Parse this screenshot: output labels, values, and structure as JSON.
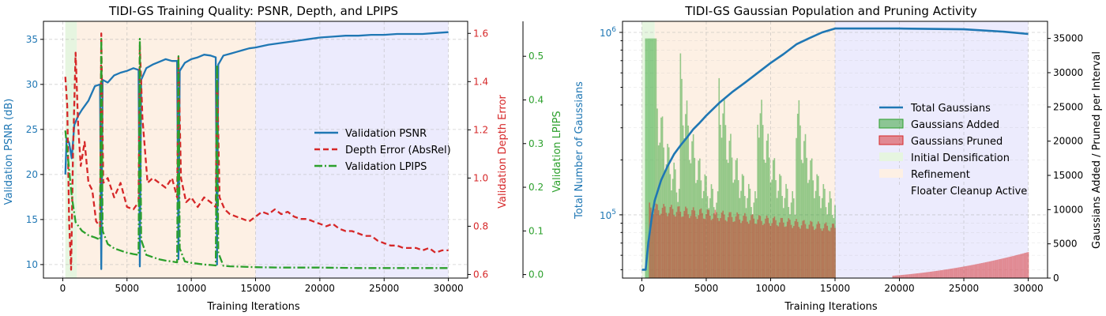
{
  "chart_data": [
    {
      "type": "line",
      "title": "TIDI-GS Training Quality: PSNR, Depth, and LPIPS",
      "xlabel": "Training Iterations",
      "xlim": [
        -1500,
        31500
      ],
      "xticks": [
        0,
        5000,
        10000,
        15000,
        20000,
        25000,
        30000
      ],
      "ylabel": "Validation PSNR (dB)",
      "ylim": [
        8.5,
        37
      ],
      "yticks": [
        10,
        15,
        20,
        25,
        30,
        35
      ],
      "y2label": "Validation Depth Error",
      "y2lim": [
        0.585,
        1.65
      ],
      "y2ticks": [
        "0.6",
        "0.8",
        "1.0",
        "1.2",
        "1.4",
        "1.6"
      ],
      "y3label": "Validation LPIPS",
      "y3lim": [
        -0.008,
        0.58
      ],
      "y3ticks": [
        "0.0",
        "0.1",
        "0.2",
        "0.3",
        "0.4",
        "0.5"
      ],
      "phases": [
        {
          "name": "Initial Densification",
          "start": 200,
          "end": 1100,
          "color": "#e6f5e0"
        },
        {
          "name": "Refinement",
          "start": 1100,
          "end": 15000,
          "color": "#fdf0e4"
        },
        {
          "name": "Floater Cleanup Active",
          "start": 15000,
          "end": 30000,
          "color": "#ecebfd"
        }
      ],
      "series": [
        {
          "name": "Validation PSNR",
          "axis": "y",
          "color": "#1f77b4",
          "dash": "",
          "points": [
            [
              200,
              20
            ],
            [
              300,
              24
            ],
            [
              500,
              23.5
            ],
            [
              700,
              21.8
            ],
            [
              900,
              25.5
            ],
            [
              1200,
              26.5
            ],
            [
              1500,
              27.2
            ],
            [
              2000,
              28.2
            ],
            [
              2500,
              29.8
            ],
            [
              2900,
              30
            ],
            [
              3000,
              9.5
            ],
            [
              3100,
              30.5
            ],
            [
              3500,
              30.2
            ],
            [
              4000,
              31
            ],
            [
              4500,
              31.3
            ],
            [
              5000,
              31.5
            ],
            [
              5500,
              31.8
            ],
            [
              5900,
              31.6
            ],
            [
              6000,
              9.8
            ],
            [
              6100,
              30.5
            ],
            [
              6500,
              31.8
            ],
            [
              7000,
              32.2
            ],
            [
              7500,
              32.5
            ],
            [
              8000,
              32.8
            ],
            [
              8500,
              32.6
            ],
            [
              8900,
              32.6
            ],
            [
              9000,
              10.6
            ],
            [
              9100,
              31.5
            ],
            [
              9500,
              32.4
            ],
            [
              10000,
              32.8
            ],
            [
              10500,
              33
            ],
            [
              11000,
              33.3
            ],
            [
              11500,
              33.2
            ],
            [
              11900,
              33
            ],
            [
              12000,
              10
            ],
            [
              12100,
              32.2
            ],
            [
              12500,
              33.2
            ],
            [
              13000,
              33.4
            ],
            [
              13500,
              33.6
            ],
            [
              14000,
              33.8
            ],
            [
              14500,
              34
            ],
            [
              15000,
              34.1
            ],
            [
              16000,
              34.4
            ],
            [
              17000,
              34.6
            ],
            [
              18000,
              34.8
            ],
            [
              19000,
              35
            ],
            [
              20000,
              35.2
            ],
            [
              21000,
              35.3
            ],
            [
              22000,
              35.4
            ],
            [
              23000,
              35.4
            ],
            [
              24000,
              35.5
            ],
            [
              25000,
              35.5
            ],
            [
              26000,
              35.6
            ],
            [
              27000,
              35.6
            ],
            [
              28000,
              35.6
            ],
            [
              29000,
              35.7
            ],
            [
              30000,
              35.8
            ]
          ]
        },
        {
          "name": "Depth Error (AbsRel)",
          "axis": "y2",
          "color": "#d62728",
          "dash": "7,4",
          "points": [
            [
              200,
              1.42
            ],
            [
              350,
              1.3
            ],
            [
              500,
              0.82
            ],
            [
              650,
              0.62
            ],
            [
              800,
              1.1
            ],
            [
              1000,
              1.52
            ],
            [
              1200,
              1.22
            ],
            [
              1400,
              1.05
            ],
            [
              1700,
              1.15
            ],
            [
              2000,
              0.98
            ],
            [
              2300,
              0.95
            ],
            [
              2600,
              0.82
            ],
            [
              2900,
              0.8
            ],
            [
              3000,
              1.6
            ],
            [
              3150,
              0.98
            ],
            [
              3500,
              1.0
            ],
            [
              4000,
              0.92
            ],
            [
              4500,
              0.98
            ],
            [
              5000,
              0.88
            ],
            [
              5500,
              0.87
            ],
            [
              5900,
              0.9
            ],
            [
              6000,
              1.55
            ],
            [
              6200,
              1.25
            ],
            [
              6600,
              0.98
            ],
            [
              7000,
              1.0
            ],
            [
              7500,
              0.98
            ],
            [
              8000,
              0.96
            ],
            [
              8500,
              1.0
            ],
            [
              8900,
              0.92
            ],
            [
              9000,
              1.5
            ],
            [
              9200,
              1.0
            ],
            [
              9600,
              0.9
            ],
            [
              10000,
              0.92
            ],
            [
              10500,
              0.88
            ],
            [
              11000,
              0.92
            ],
            [
              11500,
              0.9
            ],
            [
              11900,
              0.88
            ],
            [
              12000,
              1.46
            ],
            [
              12200,
              0.92
            ],
            [
              12600,
              0.87
            ],
            [
              13000,
              0.85
            ],
            [
              13500,
              0.84
            ],
            [
              14000,
              0.83
            ],
            [
              14500,
              0.82
            ],
            [
              15000,
              0.84
            ],
            [
              15500,
              0.86
            ],
            [
              16000,
              0.85
            ],
            [
              16500,
              0.87
            ],
            [
              17000,
              0.85
            ],
            [
              17500,
              0.86
            ],
            [
              18000,
              0.84
            ],
            [
              18500,
              0.83
            ],
            [
              19000,
              0.83
            ],
            [
              19500,
              0.82
            ],
            [
              20000,
              0.81
            ],
            [
              20500,
              0.8
            ],
            [
              21000,
              0.81
            ],
            [
              21500,
              0.79
            ],
            [
              22000,
              0.78
            ],
            [
              22500,
              0.78
            ],
            [
              23000,
              0.77
            ],
            [
              23500,
              0.76
            ],
            [
              24000,
              0.76
            ],
            [
              24500,
              0.74
            ],
            [
              25000,
              0.73
            ],
            [
              25500,
              0.72
            ],
            [
              26000,
              0.72
            ],
            [
              26500,
              0.71
            ],
            [
              27000,
              0.71
            ],
            [
              27500,
              0.71
            ],
            [
              28000,
              0.7
            ],
            [
              28500,
              0.71
            ],
            [
              29000,
              0.69
            ],
            [
              29500,
              0.7
            ],
            [
              30000,
              0.7
            ]
          ]
        },
        {
          "name": "Validation LPIPS",
          "axis": "y3",
          "color": "#2ca02c",
          "dash": "10,3,2,3",
          "points": [
            [
              200,
              0.33
            ],
            [
              300,
              0.3
            ],
            [
              500,
              0.24
            ],
            [
              700,
              0.18
            ],
            [
              1000,
              0.12
            ],
            [
              1500,
              0.1
            ],
            [
              2000,
              0.09
            ],
            [
              2500,
              0.085
            ],
            [
              2900,
              0.08
            ],
            [
              3000,
              0.54
            ],
            [
              3100,
              0.1
            ],
            [
              3500,
              0.07
            ],
            [
              4000,
              0.06
            ],
            [
              4500,
              0.055
            ],
            [
              5000,
              0.05
            ],
            [
              5500,
              0.047
            ],
            [
              5900,
              0.045
            ],
            [
              6000,
              0.54
            ],
            [
              6100,
              0.08
            ],
            [
              6500,
              0.045
            ],
            [
              7000,
              0.04
            ],
            [
              7500,
              0.035
            ],
            [
              8000,
              0.032
            ],
            [
              8500,
              0.03
            ],
            [
              8900,
              0.028
            ],
            [
              9000,
              0.5
            ],
            [
              9100,
              0.06
            ],
            [
              9500,
              0.03
            ],
            [
              10000,
              0.027
            ],
            [
              10500,
              0.025
            ],
            [
              11000,
              0.023
            ],
            [
              11500,
              0.022
            ],
            [
              11900,
              0.021
            ],
            [
              12000,
              0.48
            ],
            [
              12100,
              0.05
            ],
            [
              12500,
              0.02
            ],
            [
              13000,
              0.019
            ],
            [
              14000,
              0.018
            ],
            [
              15000,
              0.017
            ],
            [
              17000,
              0.016
            ],
            [
              20000,
              0.016
            ],
            [
              23000,
              0.015
            ],
            [
              26000,
              0.015
            ],
            [
              30000,
              0.015
            ]
          ]
        }
      ],
      "legend": {
        "position": "center-right",
        "entries": [
          "Validation PSNR",
          "Depth Error (AbsRel)",
          "Validation LPIPS"
        ]
      }
    },
    {
      "type": "line",
      "title": "TIDI-GS Gaussian Population and Pruning Activity",
      "xlabel": "Training Iterations",
      "xlim": [
        -1500,
        31500
      ],
      "xticks": [
        0,
        5000,
        10000,
        15000,
        20000,
        25000,
        30000
      ],
      "ylabel": "Total Number of Gaussians",
      "yscale": "log",
      "ylim": [
        45000,
        1150000
      ],
      "yticks_major": [
        {
          "value": 100000,
          "base": "10",
          "exp": "5"
        },
        {
          "value": 1000000,
          "base": "10",
          "exp": "6"
        }
      ],
      "y2label": "Gaussians Added / Pruned per Interval",
      "y2lim": [
        0,
        37500
      ],
      "y2ticks": [
        0,
        5000,
        10000,
        15000,
        20000,
        25000,
        30000,
        35000
      ],
      "phases": [
        {
          "name": "Initial Densification",
          "start": 0,
          "end": 1000,
          "color": "#e6f5e0"
        },
        {
          "name": "Refinement",
          "start": 1000,
          "end": 15000,
          "color": "#fdf0e4"
        },
        {
          "name": "Floater Cleanup Active",
          "start": 15000,
          "end": 30000,
          "color": "#ecebfd"
        }
      ],
      "series": [
        {
          "name": "Total Gaussians",
          "axis": "y",
          "color": "#1f77b4",
          "points": [
            [
              0,
              50000
            ],
            [
              300,
              50000
            ],
            [
              500,
              70000
            ],
            [
              800,
              100000
            ],
            [
              1000,
              120000
            ],
            [
              1500,
              155000
            ],
            [
              2000,
              185000
            ],
            [
              2500,
              215000
            ],
            [
              3000,
              240000
            ],
            [
              3500,
              265000
            ],
            [
              4000,
              295000
            ],
            [
              4500,
              320000
            ],
            [
              5000,
              350000
            ],
            [
              6000,
              410000
            ],
            [
              7000,
              470000
            ],
            [
              8000,
              530000
            ],
            [
              9000,
              600000
            ],
            [
              10000,
              680000
            ],
            [
              11000,
              760000
            ],
            [
              12000,
              860000
            ],
            [
              13000,
              930000
            ],
            [
              14000,
              1000000
            ],
            [
              15000,
              1050000
            ],
            [
              20000,
              1050000
            ],
            [
              25000,
              1040000
            ],
            [
              28000,
              1010000
            ],
            [
              30000,
              980000
            ]
          ]
        },
        {
          "name": "Gaussians Added",
          "axis": "y2",
          "color": "#2ca02c",
          "kind": "bar",
          "note": "Bars every 100 iterations, 0-15000; envelope peaks ~35000 near start and at 3000/6000/9000/12000 resets, decaying to ~10000 before each reset"
        },
        {
          "name": "Gaussians Pruned",
          "axis": "y2",
          "color": "#d62728",
          "kind": "bar",
          "note": "Bars every 100 iterations; ~11000 in early phase decaying to ~8000 by 15000; near 0 from 15000 rising to ~3800 at 30000"
        }
      ],
      "legend": {
        "position": "center-right",
        "entries": [
          "Total Gaussians",
          "Gaussians Added",
          "Gaussians Pruned",
          "Initial Densification",
          "Refinement",
          "Floater Cleanup Active"
        ]
      }
    }
  ]
}
